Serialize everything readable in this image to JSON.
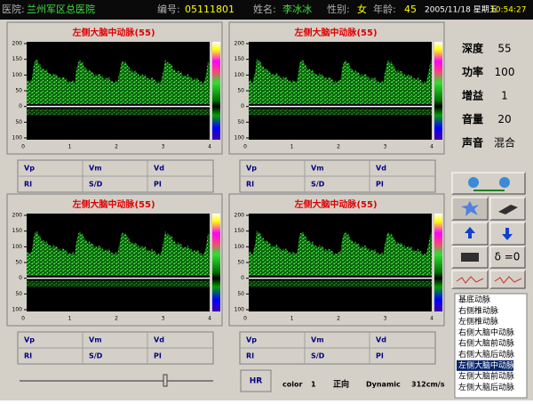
{
  "header": {
    "hospital_label": "医院:",
    "hospital": "兰州军区总医院",
    "id_label": "编号:",
    "id": "05111801",
    "name_label": "姓名:",
    "name": "李冰冰",
    "sex_label": "性别:",
    "sex": "女",
    "age_label": "年龄:",
    "age": "45",
    "date": "2005/11/18 星期五",
    "time": "10:54:27"
  },
  "spectrum_axis": {
    "yticks": [
      "200",
      "150",
      "100",
      "50",
      "0",
      "50",
      "100"
    ],
    "xticks": [
      "0",
      "1",
      "2",
      "3",
      "4"
    ]
  },
  "panels": [
    {
      "title": "左侧大脑中动脉(55)",
      "fields": [
        "Vp",
        "Vm",
        "Vd",
        "RI",
        "S/D",
        "PI"
      ]
    },
    {
      "title": "左侧大脑中动脉(55)",
      "fields": [
        "Vp",
        "Vm",
        "Vd",
        "RI",
        "S/D",
        "PI"
      ]
    },
    {
      "title": "左侧大脑中动脉(55)",
      "fields": [
        "Vp",
        "Vm",
        "Vd",
        "RI",
        "S/D",
        "PI"
      ]
    },
    {
      "title": "左侧大脑中动脉(55)",
      "fields": [
        "Vp",
        "Vm",
        "Vd",
        "RI",
        "S/D",
        "PI"
      ]
    }
  ],
  "settings": [
    {
      "label": "深度",
      "value": "55"
    },
    {
      "label": "功率",
      "value": "100"
    },
    {
      "label": "增益",
      "value": "1"
    },
    {
      "label": "音量",
      "value": "20"
    },
    {
      "label": "声音",
      "value": "混合"
    }
  ],
  "buttons": {
    "delta": "δ =0"
  },
  "vessel_list": {
    "items": [
      "基底动脉",
      "右侧椎动脉",
      "左侧椎动脉",
      "右侧大脑中动脉",
      "右侧大脑前动脉",
      "右侧大脑后动脉",
      "左侧大脑中动脉",
      "左侧大脑前动脉",
      "左侧大脑后动脉"
    ],
    "selected": 6
  },
  "status": {
    "hr": "HR",
    "color_label": "color",
    "color_value": "1",
    "direction": "正向",
    "mode": "Dynamic",
    "scale": "312cm/s"
  }
}
